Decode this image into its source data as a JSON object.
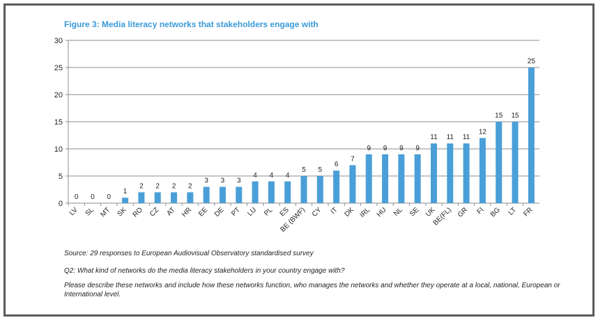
{
  "figure": {
    "title": "Figure 3: Media literacy networks that stakeholders engage with"
  },
  "chart_data": {
    "type": "bar",
    "categories": [
      "LV",
      "SL",
      "MT",
      "SK",
      "RO",
      "CZ",
      "AT",
      "HR",
      "EE",
      "DE",
      "PT",
      "LU",
      "PL",
      "ES",
      "BE (BWF)",
      "CY",
      "IT",
      "DK",
      "IRL",
      "HU",
      "NL",
      "SE",
      "UK",
      "BE(FL)",
      "GR",
      "FI",
      "BG",
      "LT",
      "FR"
    ],
    "values": [
      0,
      0,
      0,
      1,
      2,
      2,
      2,
      2,
      3,
      3,
      3,
      4,
      4,
      4,
      5,
      5,
      6,
      7,
      9,
      9,
      9,
      9,
      11,
      11,
      11,
      12,
      15,
      15,
      25
    ],
    "ylim": [
      0,
      30
    ],
    "yticks": [
      0,
      5,
      10,
      15,
      20,
      25,
      30
    ],
    "grid": true,
    "bar_color": "#4a9fd8",
    "grid_color": "#8c8c8c"
  },
  "notes": {
    "source": "Source: 29 responses to European Audiovisual Observatory standardised survey",
    "question": "Q2: What kind of networks do the media literacy stakeholders in your country engage with?",
    "description": "Please describe these networks and include how these networks function, who manages the networks and whether they operate at a local, national, European or International level."
  }
}
